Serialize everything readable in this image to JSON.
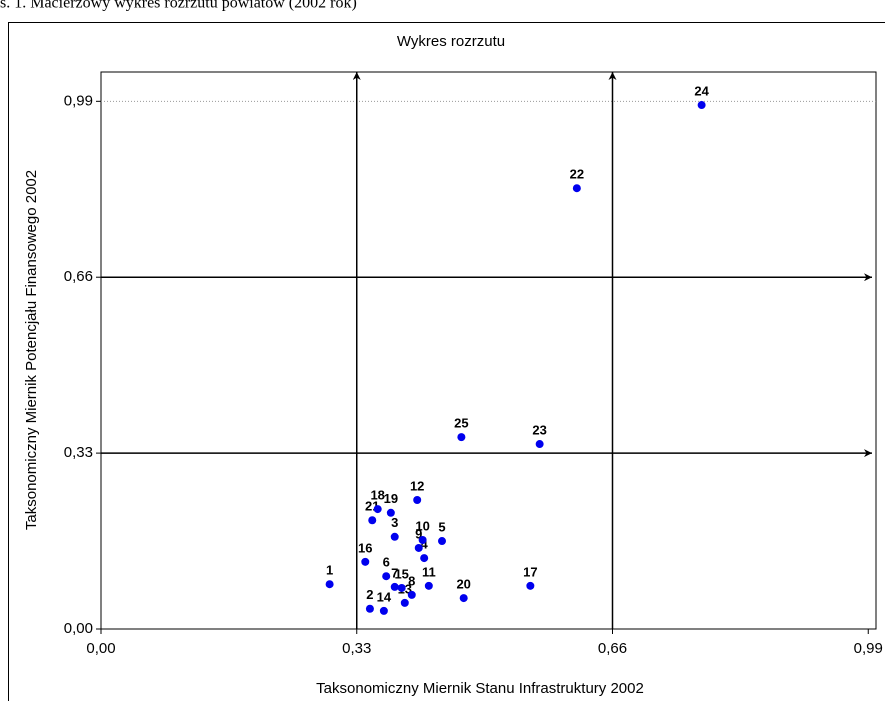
{
  "caption": "s. 1. Macierzowy wykres rozrzutu powiatów (2002 rok)",
  "chart_data": {
    "type": "scatter",
    "title": "Wykres rozrzutu",
    "xlabel": "Taksonomiczny Miernik Stanu Infrastruktury 2002",
    "ylabel": "Taksonomiczny Miernik Potencjału Finansowego 2002",
    "labels": [
      "1",
      "2",
      "14",
      "13",
      "8",
      "15",
      "7",
      "6",
      "11",
      "20",
      "17",
      "16",
      "4",
      "9",
      "10",
      "5",
      "3",
      "21",
      "18",
      "19",
      "12",
      "25",
      "23",
      "22",
      "24"
    ],
    "x": [
      0.295,
      0.347,
      0.365,
      0.392,
      0.401,
      0.388,
      0.379,
      0.368,
      0.423,
      0.468,
      0.554,
      0.341,
      0.417,
      0.41,
      0.415,
      0.44,
      0.379,
      0.35,
      0.357,
      0.374,
      0.408,
      0.465,
      0.566,
      0.614,
      0.775
    ],
    "y": [
      0.084,
      0.038,
      0.034,
      0.049,
      0.064,
      0.077,
      0.079,
      0.099,
      0.081,
      0.058,
      0.081,
      0.126,
      0.133,
      0.152,
      0.167,
      0.165,
      0.173,
      0.204,
      0.225,
      0.218,
      0.242,
      0.36,
      0.347,
      0.827,
      0.983
    ],
    "color": "#0000ee",
    "xlim": [
      0,
      1.0
    ],
    "ylim": [
      0,
      1.045
    ],
    "xticks": [
      {
        "value": 0,
        "label": "0,00"
      },
      {
        "value": 0.33,
        "label": "0,33"
      },
      {
        "value": 0.66,
        "label": "0,66"
      },
      {
        "value": 0.99,
        "label": "0,99"
      }
    ],
    "yticks": [
      {
        "value": 0,
        "label": "0,00"
      },
      {
        "value": 0.33,
        "label": "0,33"
      },
      {
        "value": 0.66,
        "label": "0,66"
      },
      {
        "value": 0.99,
        "label": "0,99"
      }
    ],
    "guides": {
      "x": [
        0.33,
        0.66
      ],
      "y": [
        0.33,
        0.66
      ]
    },
    "grid_y": [
      0.99
    ]
  }
}
